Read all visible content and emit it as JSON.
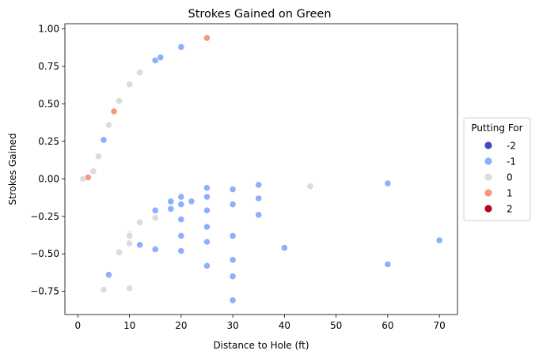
{
  "chart_data": {
    "type": "scatter",
    "title": "Strokes Gained on Green",
    "xlabel": "Distance to Hole (ft)",
    "ylabel": "Strokes Gained",
    "xlim": [
      -2.5,
      73.5
    ],
    "ylim": [
      -0.905,
      1.035
    ],
    "xticks": [
      0,
      10,
      20,
      30,
      40,
      50,
      60,
      70
    ],
    "yticks": [
      -0.75,
      -0.5,
      -0.25,
      0.0,
      0.25,
      0.5,
      0.75,
      1.0
    ],
    "ytick_labels": [
      "−0.75",
      "−0.50",
      "−0.25",
      "0.00",
      "0.25",
      "0.50",
      "0.75",
      "1.00"
    ],
    "grid": false,
    "legend": {
      "title": "Putting For",
      "placement": "center-right-outside",
      "entries": [
        {
          "label": "-2",
          "color": "#3b4cc0"
        },
        {
          "label": "-1",
          "color": "#8db0fe"
        },
        {
          "label": "0",
          "color": "#dddcdc"
        },
        {
          "label": "1",
          "color": "#f49a7b"
        },
        {
          "label": "2",
          "color": "#b40426"
        }
      ]
    },
    "series": [
      {
        "name": "-1",
        "color": "#8db0fe",
        "points": [
          [
            5,
            0.26
          ],
          [
            15,
            0.79
          ],
          [
            16,
            0.81
          ],
          [
            20,
            0.88
          ],
          [
            6,
            -0.64
          ],
          [
            12,
            -0.44
          ],
          [
            15,
            -0.21
          ],
          [
            15,
            -0.47
          ],
          [
            18,
            -0.15
          ],
          [
            18,
            -0.2
          ],
          [
            20,
            -0.12
          ],
          [
            20,
            -0.17
          ],
          [
            20,
            -0.27
          ],
          [
            20,
            -0.38
          ],
          [
            20,
            -0.48
          ],
          [
            22,
            -0.15
          ],
          [
            25,
            -0.06
          ],
          [
            25,
            -0.12
          ],
          [
            25,
            -0.21
          ],
          [
            25,
            -0.32
          ],
          [
            25,
            -0.42
          ],
          [
            25,
            -0.58
          ],
          [
            30,
            -0.07
          ],
          [
            30,
            -0.17
          ],
          [
            30,
            -0.38
          ],
          [
            30,
            -0.54
          ],
          [
            30,
            -0.65
          ],
          [
            30,
            -0.81
          ],
          [
            35,
            -0.04
          ],
          [
            35,
            -0.13
          ],
          [
            35,
            -0.24
          ],
          [
            40,
            -0.46
          ],
          [
            60,
            -0.03
          ],
          [
            60,
            -0.57
          ],
          [
            70,
            -0.41
          ]
        ]
      },
      {
        "name": "0",
        "color": "#dddcdc",
        "points": [
          [
            1,
            0.0
          ],
          [
            3,
            0.05
          ],
          [
            4,
            0.15
          ],
          [
            6,
            0.36
          ],
          [
            8,
            0.52
          ],
          [
            10,
            0.63
          ],
          [
            12,
            0.71
          ],
          [
            5,
            -0.74
          ],
          [
            8,
            -0.49
          ],
          [
            10,
            -0.37
          ],
          [
            10,
            -0.38
          ],
          [
            10,
            -0.43
          ],
          [
            10,
            -0.73
          ],
          [
            12,
            -0.29
          ],
          [
            15,
            -0.26
          ],
          [
            45,
            -0.05
          ]
        ]
      },
      {
        "name": "1",
        "color": "#f49a7b",
        "points": [
          [
            2,
            0.01
          ],
          [
            7,
            0.45
          ],
          [
            25,
            0.94
          ]
        ]
      }
    ]
  }
}
